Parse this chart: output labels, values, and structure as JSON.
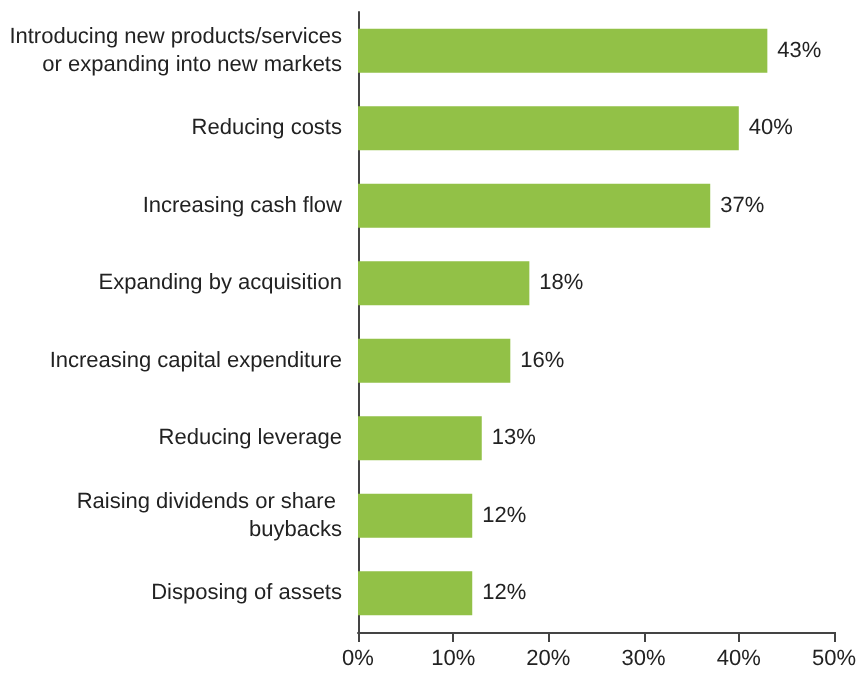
{
  "chart_data": {
    "type": "bar",
    "orientation": "horizontal",
    "categories": [
      "Introducing new products/services or expanding into new markets",
      "Reducing costs",
      "Increasing cash flow",
      "Expanding by acquisition",
      "Increasing capital expenditure",
      "Reducing leverage",
      "Raising dividends or share buybacks",
      "Disposing of assets"
    ],
    "values": [
      43,
      40,
      37,
      18,
      16,
      13,
      12,
      12
    ],
    "value_labels": [
      "43%",
      "40%",
      "37%",
      "18%",
      "16%",
      "13%",
      "12%",
      "12%"
    ],
    "color": "#92c147",
    "xlim": [
      0,
      50
    ],
    "xticks": [
      {
        "value": 0,
        "label": "0%"
      },
      {
        "value": 10,
        "label": "10%"
      },
      {
        "value": 20,
        "label": "20%"
      },
      {
        "value": 30,
        "label": "30%"
      },
      {
        "value": 40,
        "label": "40%"
      },
      {
        "value": 50,
        "label": "50%"
      }
    ],
    "grid": false
  }
}
